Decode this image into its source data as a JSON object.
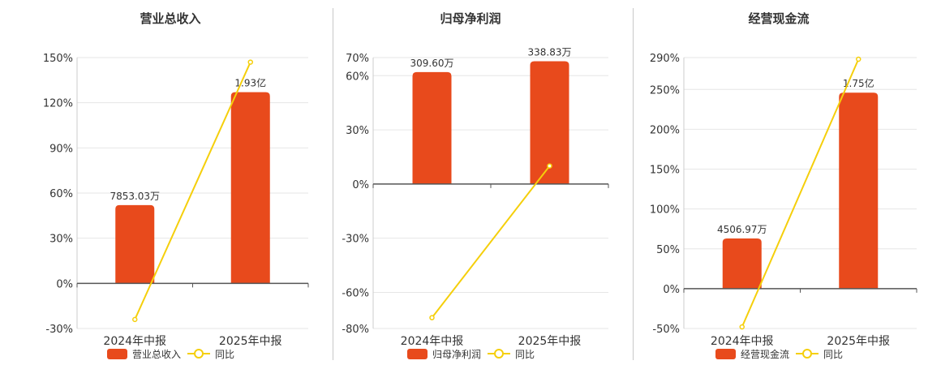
{
  "colors": {
    "bar": "#e84a1c",
    "line": "#f5cf0b",
    "axis": "#555555",
    "grid": "#e6e6e6",
    "text": "#333333",
    "divider": "#c8c8c8"
  },
  "chart_data": [
    {
      "type": "bar",
      "title": "营业总收入",
      "categories": [
        "2024年中报",
        "2025年中报"
      ],
      "ylim": [
        -30,
        150
      ],
      "yticks": [
        "150%",
        "120%",
        "90%",
        "60%",
        "30%",
        "0%",
        "-30%"
      ],
      "series": [
        {
          "name": "营业总收入",
          "type": "bar",
          "values": [
            52,
            127
          ],
          "labels": [
            "7853.03万",
            "1.93亿"
          ]
        },
        {
          "name": "同比",
          "type": "line",
          "values": [
            -24,
            147
          ]
        }
      ],
      "legend": "bottom-center",
      "grid": true
    },
    {
      "type": "bar",
      "title": "归母净利润",
      "categories": [
        "2024年中报",
        "2025年中报"
      ],
      "ylim": [
        -80,
        70
      ],
      "yticks": [
        "70%",
        "60%",
        "30%",
        "0%",
        "-30%",
        "-60%",
        "-80%"
      ],
      "series": [
        {
          "name": "归母净利润",
          "type": "bar",
          "values": [
            62,
            68
          ],
          "labels": [
            "309.60万",
            "338.83万"
          ]
        },
        {
          "name": "同比",
          "type": "line",
          "values": [
            -74,
            10
          ]
        }
      ],
      "legend": "bottom-center",
      "grid": true
    },
    {
      "type": "bar",
      "title": "经营现金流",
      "categories": [
        "2024年中报",
        "2025年中报"
      ],
      "ylim": [
        -50,
        290
      ],
      "yticks": [
        "290%",
        "250%",
        "200%",
        "150%",
        "100%",
        "50%",
        "0%",
        "-50%"
      ],
      "series": [
        {
          "name": "经营现金流",
          "type": "bar",
          "values": [
            63,
            246
          ],
          "labels": [
            "4506.97万",
            "1.75亿"
          ]
        },
        {
          "name": "同比",
          "type": "line",
          "values": [
            -48,
            288
          ]
        }
      ],
      "legend": "bottom-center",
      "grid": true
    }
  ]
}
